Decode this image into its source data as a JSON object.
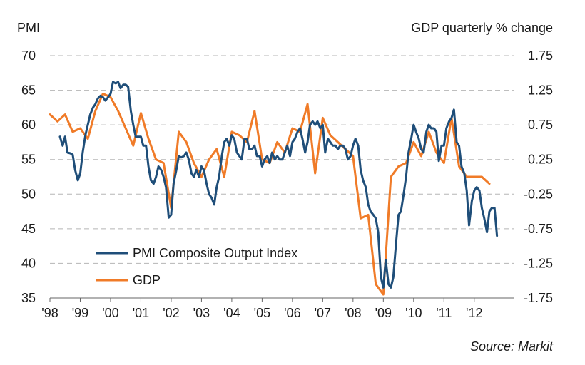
{
  "chart_data": {
    "type": "line",
    "left_axis_label": "PMI",
    "right_axis_label": "GDP quarterly % change",
    "source": "Source: Markit",
    "left_ylim": [
      35,
      70
    ],
    "left_ticks": [
      "70",
      "65",
      "60",
      "55",
      "50",
      "45",
      "40",
      "35"
    ],
    "left_tick_values": [
      70,
      65,
      60,
      55,
      50,
      45,
      40,
      35
    ],
    "right_ylim": [
      -1.75,
      1.75
    ],
    "right_ticks": [
      "1.75",
      "1.25",
      "0.75",
      "0.25",
      "-0.25",
      "-0.75",
      "-1.25",
      "-1.75"
    ],
    "right_tick_values": [
      1.75,
      1.25,
      0.75,
      0.25,
      -0.25,
      -0.75,
      -1.25,
      -1.75
    ],
    "x_ticks": [
      "'98",
      "'99",
      "'00",
      "'01",
      "'02",
      "'03",
      "'04",
      "'05",
      "'06",
      "'07",
      "'08",
      "'09",
      "'10",
      "'11",
      "'12"
    ],
    "x_tick_values": [
      1998,
      1999,
      2000,
      2001,
      2002,
      2003,
      2004,
      2005,
      2006,
      2007,
      2008,
      2009,
      2010,
      2011,
      2012
    ],
    "xlim": [
      1998,
      2013.3
    ],
    "series": [
      {
        "name": "PMI Composite Output Index",
        "axis": "left",
        "color": "#1f4e79",
        "x": [
          1998.33,
          1998.42,
          1998.5,
          1998.58,
          1998.67,
          1998.75,
          1998.83,
          1998.92,
          1999.0,
          1999.08,
          1999.17,
          1999.25,
          1999.33,
          1999.42,
          1999.5,
          1999.58,
          1999.67,
          1999.75,
          1999.83,
          1999.92,
          2000.0,
          2000.08,
          2000.17,
          2000.25,
          2000.33,
          2000.42,
          2000.5,
          2000.58,
          2000.67,
          2000.75,
          2000.83,
          2000.92,
          2001.0,
          2001.08,
          2001.17,
          2001.25,
          2001.33,
          2001.42,
          2001.5,
          2001.58,
          2001.67,
          2001.75,
          2001.83,
          2001.92,
          2002.0,
          2002.08,
          2002.17,
          2002.25,
          2002.33,
          2002.42,
          2002.5,
          2002.58,
          2002.67,
          2002.75,
          2002.83,
          2002.92,
          2003.0,
          2003.08,
          2003.17,
          2003.25,
          2003.33,
          2003.42,
          2003.5,
          2003.58,
          2003.67,
          2003.75,
          2003.83,
          2003.92,
          2004.0,
          2004.08,
          2004.17,
          2004.25,
          2004.33,
          2004.42,
          2004.5,
          2004.58,
          2004.67,
          2004.75,
          2004.83,
          2004.92,
          2005.0,
          2005.08,
          2005.17,
          2005.25,
          2005.33,
          2005.42,
          2005.5,
          2005.58,
          2005.67,
          2005.75,
          2005.83,
          2005.92,
          2006.0,
          2006.08,
          2006.17,
          2006.25,
          2006.33,
          2006.42,
          2006.5,
          2006.58,
          2006.67,
          2006.75,
          2006.83,
          2006.92,
          2007.0,
          2007.08,
          2007.17,
          2007.25,
          2007.33,
          2007.42,
          2007.5,
          2007.58,
          2007.67,
          2007.75,
          2007.83,
          2007.92,
          2008.0,
          2008.08,
          2008.17,
          2008.25,
          2008.33,
          2008.42,
          2008.5,
          2008.58,
          2008.67,
          2008.75,
          2008.83,
          2008.92,
          2009.0,
          2009.08,
          2009.17,
          2009.25,
          2009.33,
          2009.42,
          2009.5,
          2009.58,
          2009.67,
          2009.75,
          2009.83,
          2009.92,
          2010.0,
          2010.08,
          2010.17,
          2010.25,
          2010.33,
          2010.42,
          2010.5,
          2010.58,
          2010.67,
          2010.75,
          2010.83,
          2010.92,
          2011.0,
          2011.08,
          2011.17,
          2011.25,
          2011.33,
          2011.42,
          2011.5,
          2011.58,
          2011.67,
          2011.75,
          2011.83,
          2011.92,
          2012.0,
          2012.08,
          2012.17,
          2012.25,
          2012.33,
          2012.42,
          2012.5,
          2012.58,
          2012.67,
          2012.75
        ],
        "values": [
          58.3,
          57.0,
          58.3,
          56.0,
          55.9,
          55.7,
          53.5,
          52.0,
          53.0,
          56.0,
          58.5,
          60.0,
          61.5,
          62.5,
          63.0,
          63.8,
          64.2,
          64.0,
          63.5,
          64.0,
          64.5,
          66.2,
          66.0,
          66.2,
          65.3,
          65.8,
          65.8,
          65.5,
          62.0,
          60.0,
          58.3,
          58.3,
          58.3,
          57.0,
          57.0,
          54.0,
          52.0,
          51.5,
          52.5,
          54.0,
          53.5,
          52.5,
          51.0,
          46.6,
          47.0,
          51.5,
          53.5,
          55.5,
          55.3,
          55.5,
          56.0,
          55.0,
          53.0,
          52.5,
          53.5,
          52.5,
          54.0,
          53.5,
          51.5,
          50.0,
          49.5,
          48.5,
          51.0,
          52.5,
          55.5,
          57.5,
          58.0,
          57.0,
          58.5,
          58.0,
          56.0,
          55.5,
          55.0,
          58.0,
          58.0,
          56.5,
          56.5,
          57.0,
          55.5,
          55.5,
          54.0,
          55.0,
          55.5,
          54.5,
          56.0,
          55.0,
          55.5,
          55.0,
          55.0,
          56.0,
          57.0,
          55.5,
          57.5,
          58.0,
          59.0,
          59.5,
          58.0,
          56.0,
          57.5,
          60.0,
          60.5,
          60.0,
          60.5,
          59.5,
          60.0,
          56.0,
          58.0,
          57.5,
          57.0,
          57.0,
          56.5,
          57.0,
          57.0,
          56.5,
          55.0,
          55.5,
          57.0,
          58.0,
          57.0,
          53.5,
          52.0,
          51.0,
          48.5,
          47.5,
          47.0,
          46.5,
          44.5,
          38.0,
          36.5,
          40.5,
          37.0,
          36.5,
          38.0,
          43.0,
          47.0,
          47.5,
          50.0,
          52.5,
          56.0,
          58.0,
          60.0,
          59.0,
          58.0,
          56.5,
          56.0,
          59.0,
          60.0,
          59.5,
          59.5,
          59.0,
          54.8,
          57.0,
          57.0,
          59.5,
          60.5,
          61.0,
          62.2,
          57.5,
          57.0,
          54.0,
          53.0,
          50.5,
          45.5,
          49.0,
          50.5,
          51.0,
          50.5,
          48.0,
          46.5,
          44.5,
          47.5,
          48.0,
          48.0,
          44.0
        ]
      },
      {
        "name": "GDP",
        "axis": "right",
        "color": "#f07b28",
        "x": [
          1998.0,
          1998.25,
          1998.5,
          1998.75,
          1999.0,
          1999.25,
          1999.5,
          1999.75,
          2000.0,
          2000.25,
          2000.5,
          2000.75,
          2001.0,
          2001.25,
          2001.5,
          2001.75,
          2002.0,
          2002.25,
          2002.5,
          2002.75,
          2003.0,
          2003.25,
          2003.5,
          2003.75,
          2004.0,
          2004.25,
          2004.5,
          2004.75,
          2005.0,
          2005.25,
          2005.5,
          2005.75,
          2006.0,
          2006.25,
          2006.5,
          2006.75,
          2007.0,
          2007.25,
          2007.5,
          2007.75,
          2008.0,
          2008.25,
          2008.5,
          2008.75,
          2009.0,
          2009.25,
          2009.5,
          2009.75,
          2010.0,
          2010.25,
          2010.5,
          2010.75,
          2011.0,
          2011.25,
          2011.5,
          2011.75,
          2012.0,
          2012.25,
          2012.5
        ],
        "values": [
          0.9,
          0.8,
          0.9,
          0.65,
          0.7,
          0.55,
          0.95,
          1.2,
          1.15,
          0.95,
          0.7,
          0.45,
          0.92,
          0.55,
          0.25,
          0.2,
          -0.45,
          0.65,
          0.5,
          0.2,
          0.0,
          0.25,
          0.4,
          0.0,
          0.65,
          0.6,
          0.5,
          0.95,
          0.25,
          0.2,
          0.5,
          0.35,
          0.7,
          0.65,
          1.05,
          0.05,
          0.85,
          0.6,
          0.5,
          0.4,
          0.3,
          -0.6,
          -0.55,
          -1.55,
          -1.7,
          0.0,
          0.15,
          0.2,
          0.5,
          0.3,
          0.65,
          0.35,
          0.2,
          0.85,
          0.15,
          0.0,
          0.0,
          0.0,
          -0.1
        ]
      }
    ]
  }
}
